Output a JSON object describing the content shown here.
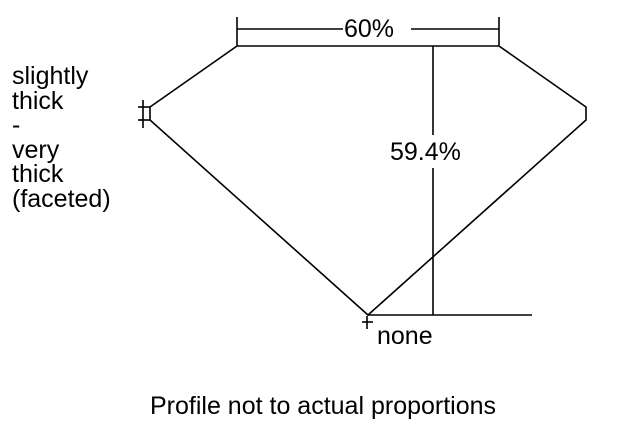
{
  "diagram": {
    "table_label": "60%",
    "depth_label": "59.4%",
    "culet_label": "none",
    "girdle_label_lines": [
      "slightly",
      "thick",
      "-",
      "very",
      "thick",
      "(faceted)"
    ],
    "caption": "Profile not to actual proportions"
  }
}
